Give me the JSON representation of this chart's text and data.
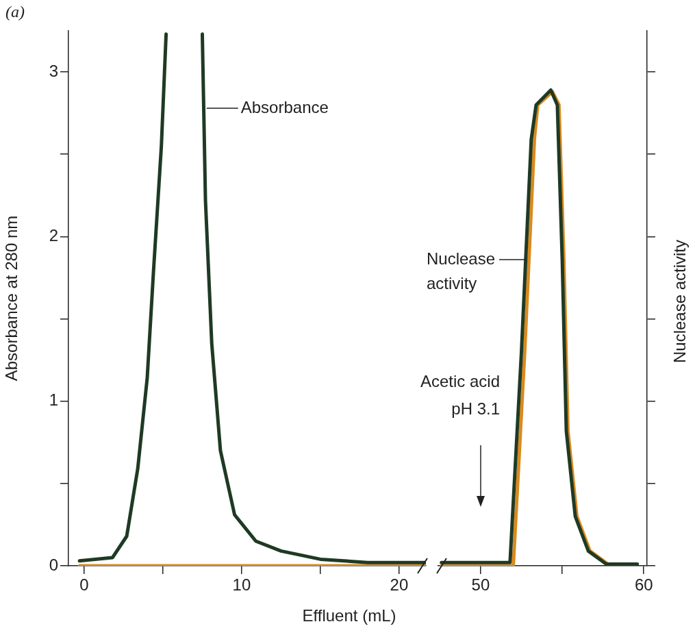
{
  "chart_data": [
    {
      "type": "line",
      "title": "(a)",
      "ylabel": "Absorbance at 280 nm",
      "xlabel": "Effluent (mL)",
      "xlim": [
        -1,
        21.7
      ],
      "xticks": [
        0,
        {
          "value": 5,
          "label": null
        },
        10,
        {
          "value": 15,
          "label": null
        },
        20
      ],
      "ylim": [
        0,
        3.25
      ],
      "yticks": [
        0,
        {
          "value": 0.5,
          "label": null
        },
        1,
        {
          "value": 1.5,
          "label": null
        },
        2,
        {
          "value": 2.5,
          "label": null
        },
        3
      ],
      "grid": false,
      "legend": false,
      "series": [
        {
          "color": "#1f3a24",
          "x": [
            -0.3,
            1.8,
            2.7,
            3.4,
            4.0,
            4.4,
            4.9,
            5.2,
            6.3,
            7.5,
            7.7,
            8.1,
            8.65,
            9.55,
            10.9,
            12.5,
            15,
            18,
            21.7
          ],
          "values": [
            0.03,
            0.05,
            0.18,
            0.59,
            1.14,
            1.79,
            2.55,
            3.23,
            null,
            3.23,
            2.22,
            1.35,
            0.7,
            0.31,
            0.15,
            0.09,
            0.04,
            0.02,
            0.02
          ]
        },
        {
          "color": "#d98a1e",
          "x": [
            -0.3,
            21.7
          ],
          "values": [
            0,
            0
          ]
        }
      ],
      "annotations": [
        {
          "text": "Absorbance",
          "x": 7.6,
          "y": 2.78
        }
      ]
    },
    {
      "type": "line",
      "y2label": "Nuclease activity",
      "tick_labels": "x",
      "xlim": [
        47.4,
        60.2
      ],
      "xticks": [
        50,
        {
          "value": 55,
          "label": null
        },
        60
      ],
      "ylim": [
        0,
        3.25
      ],
      "yticks": [
        {
          "value": 0,
          "label": null
        },
        {
          "value": 0.5,
          "label": null
        },
        {
          "value": 1,
          "label": null
        },
        {
          "value": 1.5,
          "label": null
        },
        {
          "value": 2,
          "label": null
        },
        {
          "value": 2.5,
          "label": null
        },
        {
          "value": 3,
          "label": null
        }
      ],
      "grid": false,
      "legend": false,
      "series": [
        {
          "color": "#1f3a24",
          "x": [
            47.6,
            51.8,
            52.5,
            53.1,
            53.4,
            54.3,
            54.7,
            55.0,
            55.25,
            55.8,
            56.6,
            57.7,
            59.6
          ],
          "values": [
            0.02,
            0.02,
            1.3,
            2.59,
            2.8,
            2.89,
            2.8,
            1.86,
            0.82,
            0.3,
            0.09,
            0.01,
            0.01
          ]
        },
        {
          "color": "#d98a1e",
          "x": [
            47.6,
            52.0,
            52.7,
            53.3,
            53.5,
            54.4,
            54.8,
            55.1,
            55.35,
            55.9,
            56.7,
            57.8
          ],
          "values": [
            0,
            0,
            1.3,
            2.6,
            2.8,
            2.88,
            2.8,
            1.86,
            0.82,
            0.3,
            0.09,
            0.01
          ]
        }
      ],
      "annotations": [
        {
          "text": "Nuclease\nactivity",
          "x": 52.9,
          "y": 1.86
        },
        "Acetic acid\npH 3.1"
      ]
    }
  ]
}
